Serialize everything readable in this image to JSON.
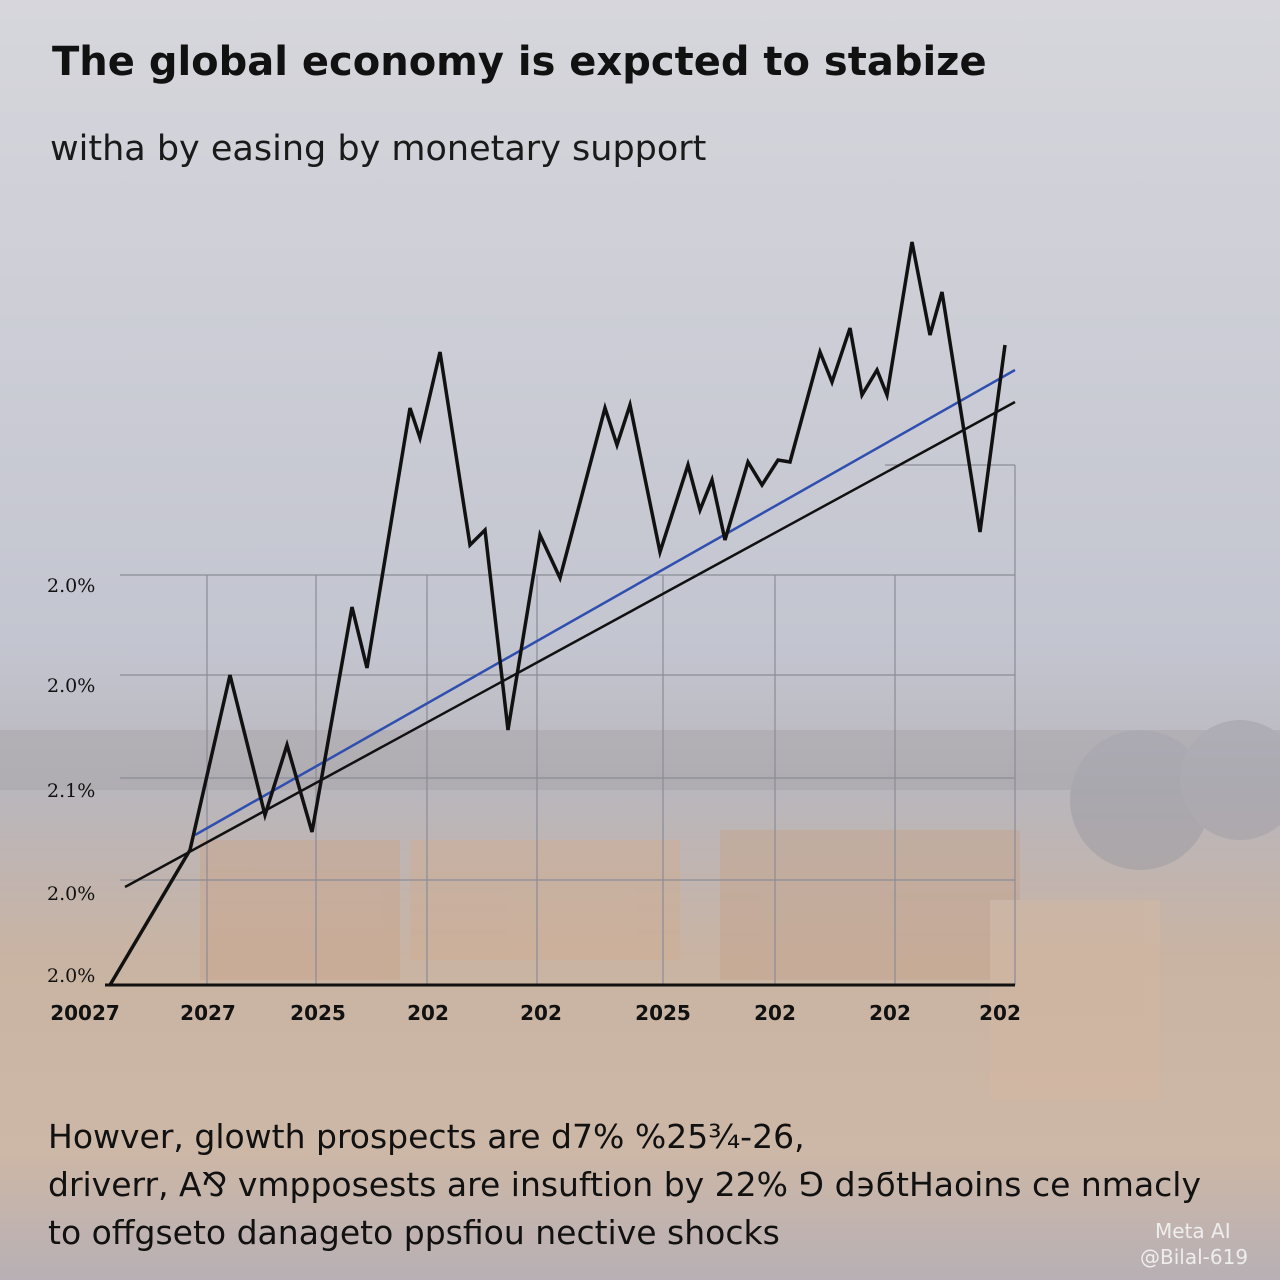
{
  "header": {
    "title": "The global economy is expcted to stabize",
    "subtitle": "witha by easing by monetary support"
  },
  "y_labels": [
    "2.0%",
    "2.0%",
    "2.1%",
    "2.0%",
    "2.0%"
  ],
  "x_labels": [
    "20027",
    "2027",
    "2025",
    "202",
    "202",
    "2025",
    "202",
    "202",
    "202"
  ],
  "footer": [
    "Howver, glowth prospects are d7%  %25¾-26,",
    "driverr, A⅋ vmpposests are insuftion by 22% ⅁ d϶ϭtHaoins ce nmacly",
    "to offgseto danageto ppsfiou nective shocks"
  ],
  "watermark": [
    "Meta AI",
    "@Bilal-619"
  ]
}
